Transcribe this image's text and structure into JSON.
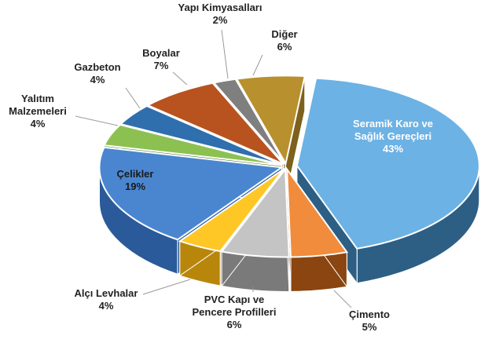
{
  "chart_data": {
    "type": "pie",
    "style": "3d-exploded",
    "title": "",
    "legend": "none",
    "slices": [
      {
        "label": "Seramik Karo ve Sağlık Gereçleri",
        "lines": [
          "Seramik Karo ve",
          "Sağlık Gereçleri"
        ],
        "value": 43,
        "pct": "43%",
        "color": "#6cb2e4",
        "side_color": "#2d5f85"
      },
      {
        "label": "Çimento",
        "lines": [
          "Çimento"
        ],
        "value": 5,
        "pct": "5%",
        "color": "#f08c3c",
        "side_color": "#8a4510"
      },
      {
        "label": "PVC Kapı ve Pencere Profilleri",
        "lines": [
          "PVC Kapı ve",
          "Pencere Profilleri"
        ],
        "value": 6,
        "pct": "6%",
        "color": "#c4c4c4",
        "side_color": "#7a7a7a"
      },
      {
        "label": "Alçı Levhalar",
        "lines": [
          "Alçı Levhalar"
        ],
        "value": 4,
        "pct": "4%",
        "color": "#ffc726",
        "side_color": "#b8860b"
      },
      {
        "label": "Çelikler",
        "lines": [
          "Çelikler"
        ],
        "value": 19,
        "pct": "19%",
        "color": "#4a86d0",
        "side_color": "#2a5a9a"
      },
      {
        "label": "Yalıtım Malzemeleri",
        "lines": [
          "Yalıtım",
          "Malzemeleri"
        ],
        "value": 4,
        "pct": "4%",
        "color": "#8cc152",
        "side_color": "#557d2e"
      },
      {
        "label": "Gazbeton",
        "lines": [
          "Gazbeton"
        ],
        "value": 4,
        "pct": "4%",
        "color": "#2f6fae",
        "side_color": "#1c4878"
      },
      {
        "label": "Boyalar",
        "lines": [
          "Boyalar"
        ],
        "value": 7,
        "pct": "7%",
        "color": "#b8531f",
        "side_color": "#7a3410"
      },
      {
        "label": "Yapı Kimyasalları",
        "lines": [
          "Yapı Kimyasalları"
        ],
        "value": 2,
        "pct": "2%",
        "color": "#7f7f7f",
        "side_color": "#4f4f4f"
      },
      {
        "label": "Diğer",
        "lines": [
          "Diğer"
        ],
        "value": 6,
        "pct": "6%",
        "color": "#b8902e",
        "side_color": "#7d611c"
      }
    ]
  }
}
